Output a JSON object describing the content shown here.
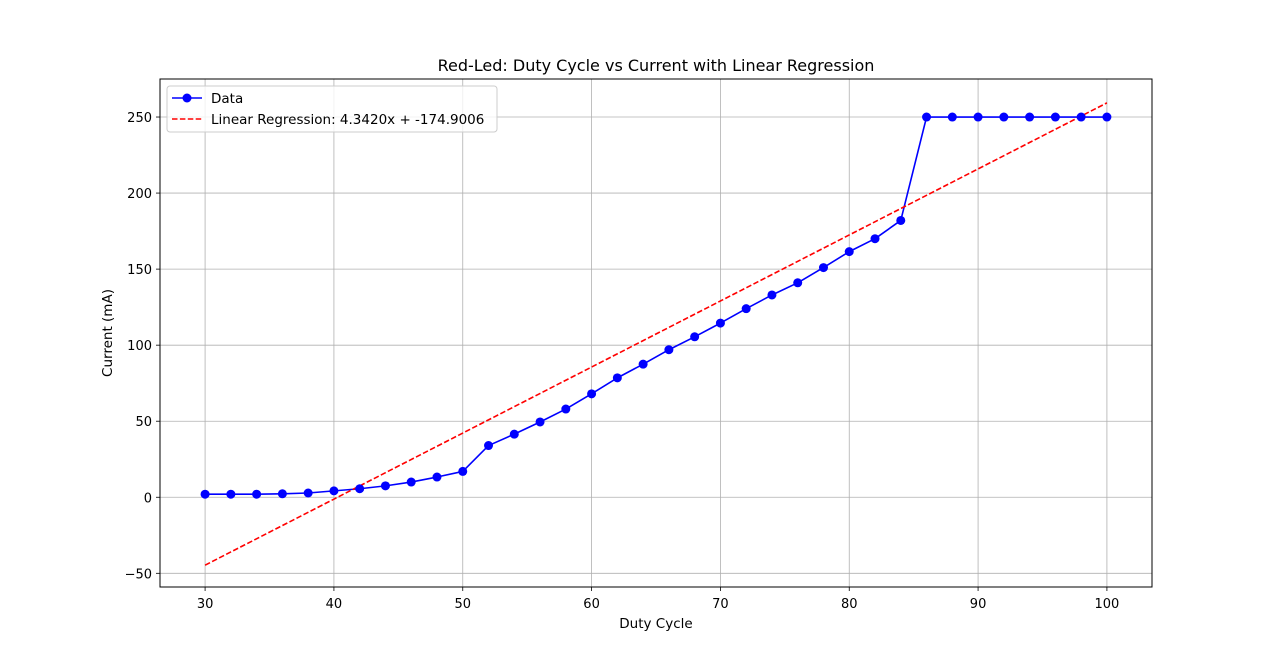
{
  "chart_data": {
    "type": "line",
    "title": "Red-Led: Duty Cycle vs Current with Linear Regression",
    "xlabel": "Duty Cycle",
    "ylabel": "Current (mA)",
    "xlim": [
      26.5,
      103.5
    ],
    "ylim": [
      -59,
      275
    ],
    "xticks": [
      30,
      40,
      50,
      60,
      70,
      80,
      90,
      100
    ],
    "yticks": [
      -50,
      0,
      50,
      100,
      150,
      200,
      250
    ],
    "grid": true,
    "legend_position": "top-left",
    "series": [
      {
        "name": "Data",
        "color": "#0000ff",
        "style": "solid-line-with-circle-markers",
        "x": [
          30,
          32,
          34,
          36,
          38,
          40,
          42,
          44,
          46,
          48,
          50,
          52,
          54,
          56,
          58,
          60,
          62,
          64,
          66,
          68,
          70,
          72,
          74,
          76,
          78,
          80,
          82,
          84,
          86,
          88,
          90,
          92,
          94,
          96,
          98,
          100
        ],
        "y": [
          2,
          2,
          2,
          2.3,
          2.8,
          4.2,
          5.6,
          7.5,
          10,
          13.3,
          17,
          34,
          41.5,
          49.5,
          58,
          68,
          78.5,
          87.5,
          97,
          105.5,
          114.5,
          124,
          133,
          141,
          151,
          161.5,
          170,
          182,
          250,
          250,
          250,
          250,
          250,
          250,
          250,
          250
        ]
      },
      {
        "name": "Linear Regression: 4.3420x + -174.9006",
        "color": "#ff0000",
        "style": "dashed-line",
        "slope": 4.342,
        "intercept": -174.9006,
        "x_range": [
          30,
          100
        ]
      }
    ]
  }
}
